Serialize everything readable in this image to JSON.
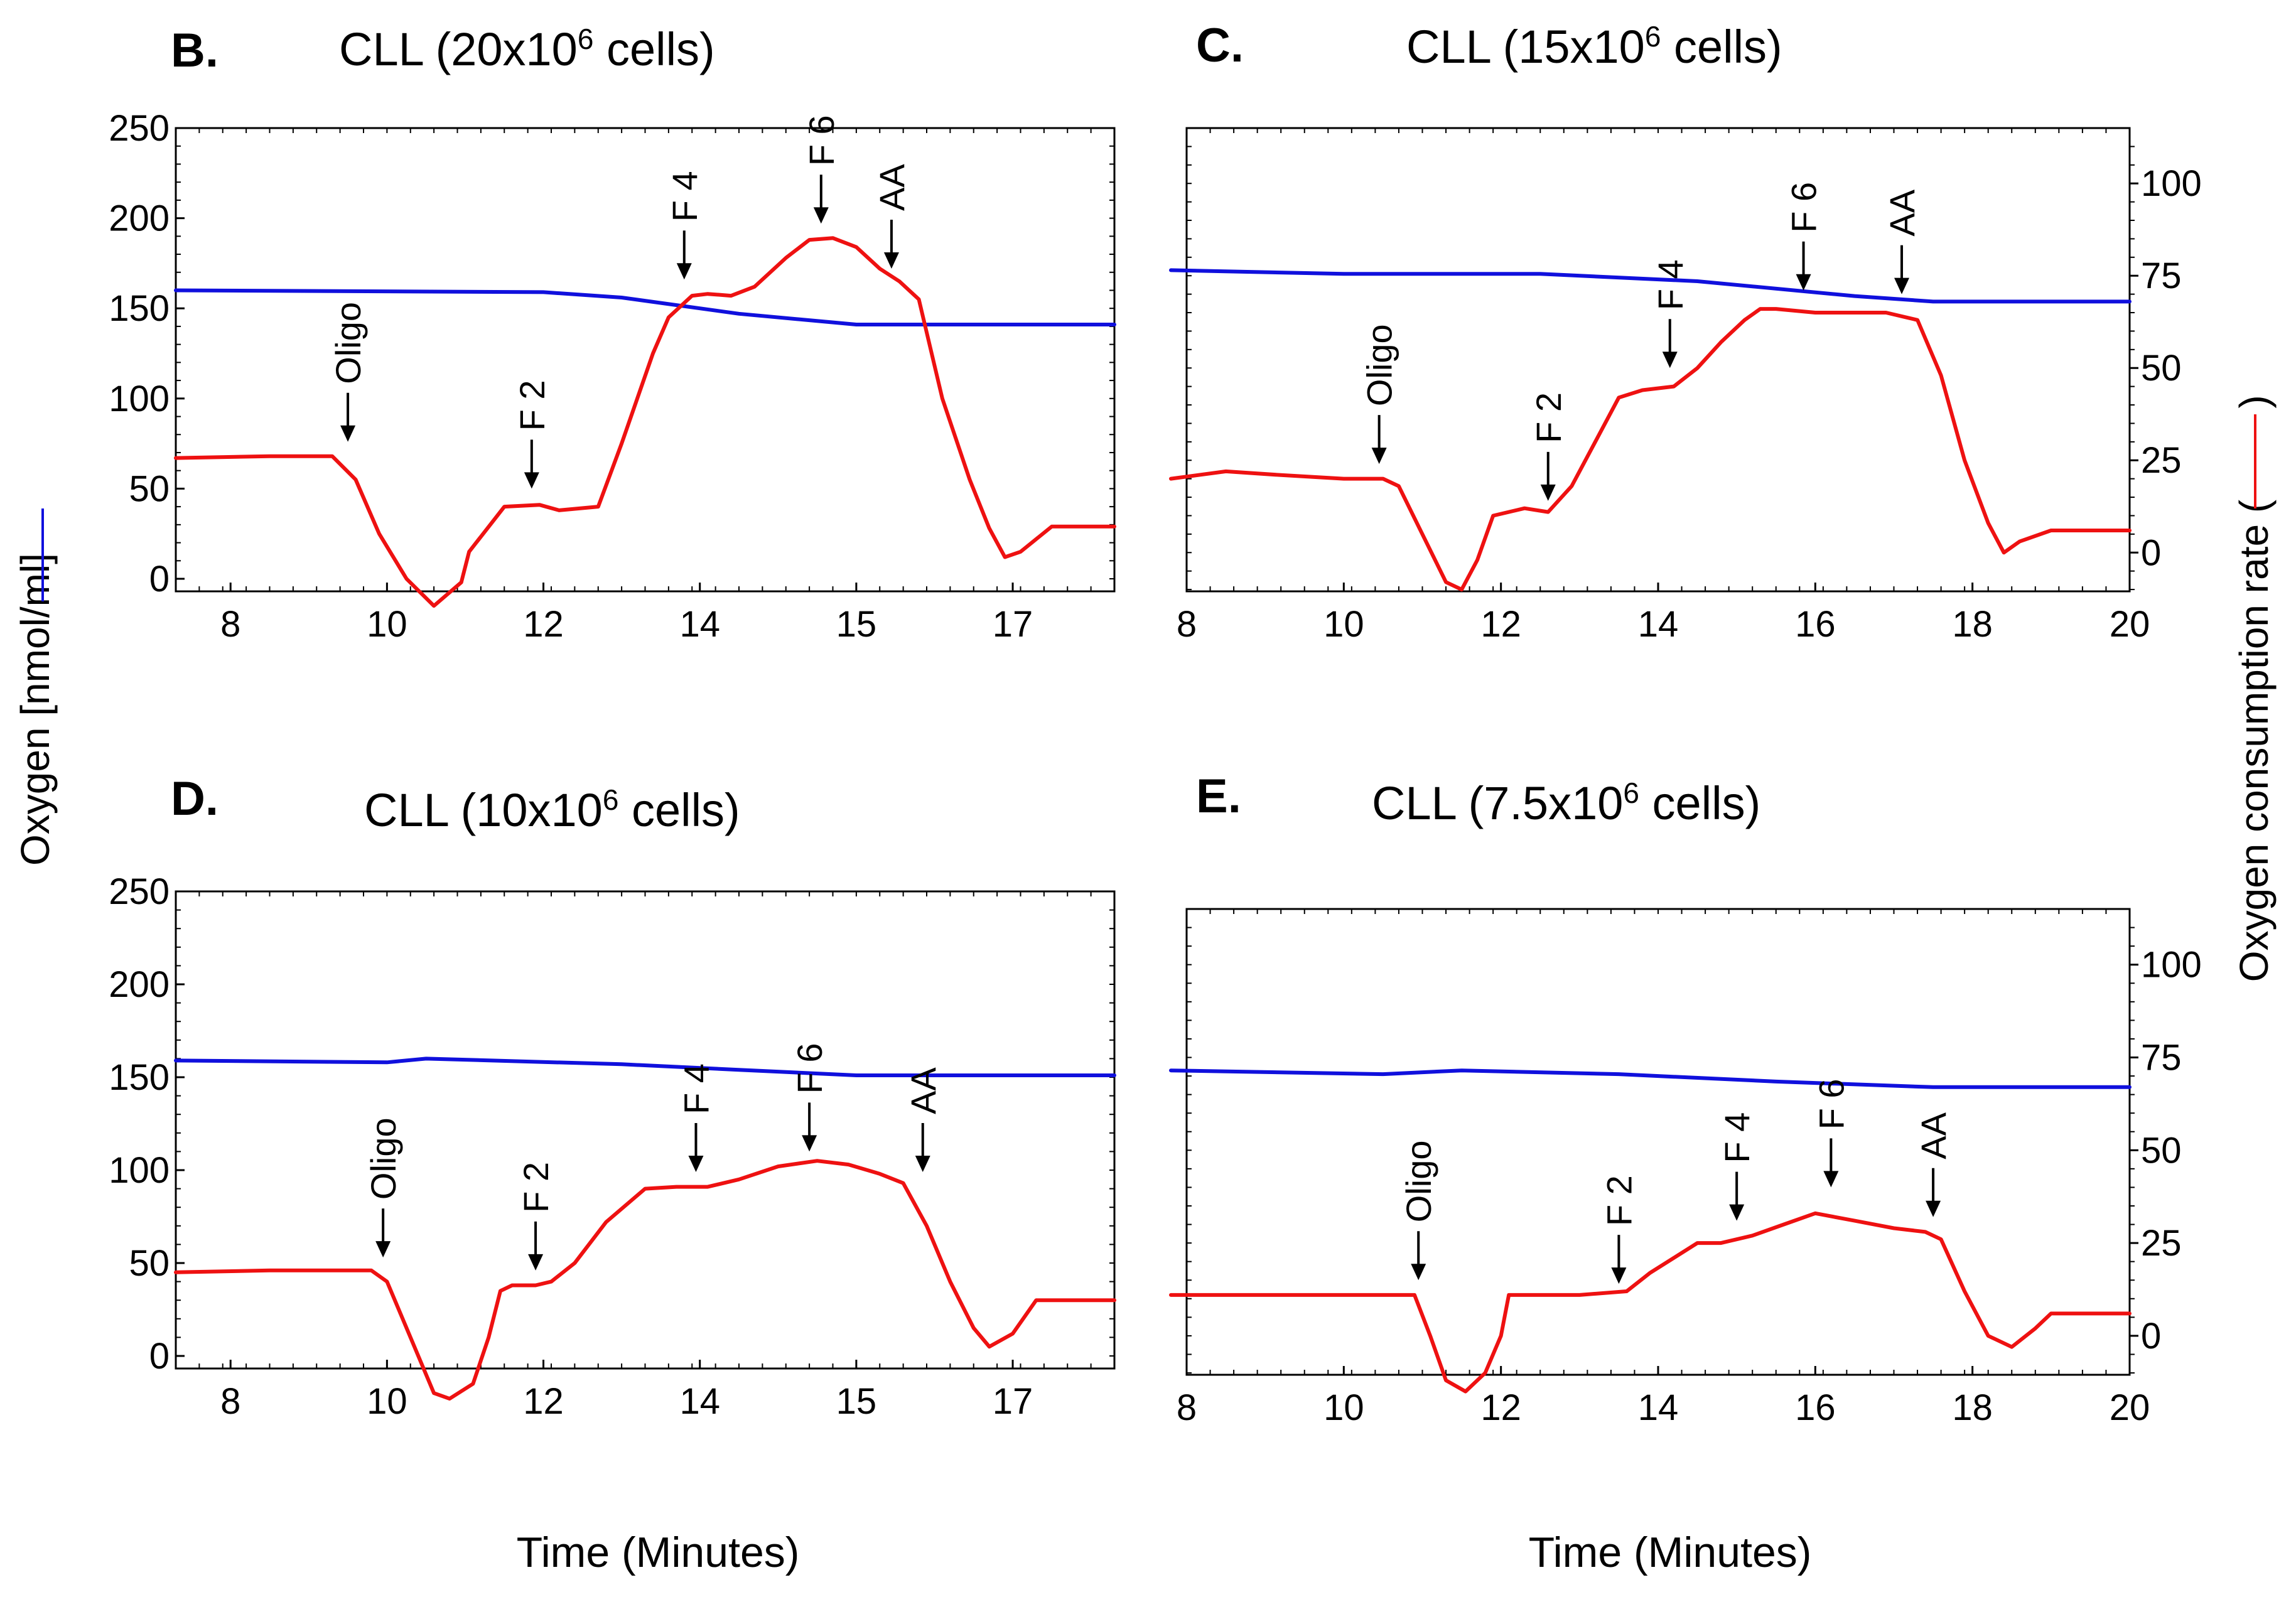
{
  "figure": {
    "shared_y_left_label": "Oxygen [nmol/ml]",
    "shared_y_right_label": "Oxygen consumption rate (",
    "shared_y_right_label_close": ")",
    "x_label": "Time (Minutes)",
    "colors": {
      "oxygen": "#1010dd",
      "ocr": "#ee1111"
    }
  },
  "chart_data": [
    {
      "id": "B",
      "letter": "B.",
      "title_pre": "CLL (20x10",
      "title_sup": "6",
      "title_post": " cells)",
      "type": "line",
      "xticks": [
        {
          "label": "8",
          "pos": 0.5
        },
        {
          "label": "10",
          "pos": 2.5
        },
        {
          "label": "12",
          "pos": 4.5
        },
        {
          "label": "14",
          "pos": 6.5
        },
        {
          "label": "15",
          "pos": 8.5
        },
        {
          "label": "17",
          "pos": 10.5
        }
      ],
      "xlim": [
        -0.2,
        11.8
      ],
      "left_axis": {
        "range": [
          0,
          250
        ],
        "ticks": [
          0,
          50,
          100,
          150,
          200,
          250
        ]
      },
      "right_axis": null,
      "series": [
        {
          "name": "Oxygen",
          "color": "#1010dd",
          "axis": "left",
          "x": [
            -0.2,
            4.5,
            5.5,
            7.0,
            8.5,
            11.8
          ],
          "y": [
            160,
            159,
            156,
            147,
            141,
            141
          ]
        },
        {
          "name": "Oxygen consumption rate",
          "color": "#ee1111",
          "axis": "left",
          "x": [
            -0.2,
            1.0,
            1.8,
            2.1,
            2.4,
            2.75,
            3.1,
            3.45,
            3.55,
            4.0,
            4.45,
            4.7,
            5.2,
            5.5,
            5.9,
            6.1,
            6.4,
            6.6,
            6.9,
            7.2,
            7.6,
            7.9,
            8.2,
            8.5,
            8.8,
            9.05,
            9.3,
            9.6,
            9.95,
            10.2,
            10.4,
            10.6,
            11.0,
            11.8
          ],
          "y": [
            67,
            68,
            68,
            55,
            25,
            0,
            -15,
            -2,
            15,
            40,
            41,
            38,
            40,
            75,
            125,
            145,
            157,
            158,
            157,
            162,
            178,
            188,
            189,
            184,
            172,
            165,
            155,
            100,
            55,
            28,
            12,
            15,
            29,
            29
          ]
        }
      ],
      "annotations": [
        {
          "text": "Oligo",
          "x": 2.0,
          "y": 76
        },
        {
          "text": "F 2",
          "x": 4.35,
          "y": 50
        },
        {
          "text": "F 4",
          "x": 6.3,
          "y": 166
        },
        {
          "text": "F 6",
          "x": 8.05,
          "y": 197
        },
        {
          "text": "AA",
          "x": 8.95,
          "y": 172
        }
      ]
    },
    {
      "id": "C",
      "letter": "C.",
      "title_pre": "CLL (15x10",
      "title_sup": "6",
      "title_post": " cells)",
      "type": "line",
      "xticks": [
        {
          "label": "8",
          "pos": 8
        },
        {
          "label": "10",
          "pos": 10
        },
        {
          "label": "12",
          "pos": 12
        },
        {
          "label": "14",
          "pos": 14
        },
        {
          "label": "16",
          "pos": 16
        },
        {
          "label": "18",
          "pos": 18
        },
        {
          "label": "20",
          "pos": 20
        }
      ],
      "xlim": [
        8,
        20
      ],
      "left_axis": null,
      "right_axis": {
        "range": [
          -10,
          115
        ],
        "ticks": [
          0,
          25,
          50,
          75,
          100
        ]
      },
      "series": [
        {
          "name": "Oxygen",
          "color": "#1010dd",
          "axis": "right",
          "x": [
            7.8,
            10.0,
            12.5,
            14.5,
            16.5,
            17.5,
            20.0
          ],
          "y": [
            76.5,
            75.5,
            75.5,
            73.5,
            69.5,
            68.0,
            68.0
          ]
        },
        {
          "name": "Oxygen consumption rate",
          "color": "#ee1111",
          "axis": "right",
          "x": [
            7.8,
            8.5,
            9.2,
            10.0,
            10.5,
            10.7,
            11.0,
            11.3,
            11.5,
            11.7,
            11.9,
            12.3,
            12.6,
            12.9,
            13.2,
            13.5,
            13.8,
            14.2,
            14.5,
            14.8,
            15.1,
            15.3,
            15.5,
            16.0,
            16.5,
            16.9,
            17.3,
            17.6,
            17.9,
            18.2,
            18.4,
            18.6,
            19.0,
            20.0
          ],
          "y": [
            20,
            22,
            21,
            20,
            20,
            18,
            5,
            -8,
            -10,
            -2,
            10,
            12,
            11,
            18,
            30,
            42,
            44,
            45,
            50,
            57,
            63,
            66,
            66,
            65,
            65,
            65,
            63,
            48,
            25,
            8,
            0,
            3,
            6,
            6
          ]
        }
      ],
      "annotations": [
        {
          "text": "Oligo",
          "x": 10.45,
          "y": 24
        },
        {
          "text": "F 2",
          "x": 12.6,
          "y": 14
        },
        {
          "text": "F 4",
          "x": 14.15,
          "y": 50
        },
        {
          "text": "F 6",
          "x": 15.85,
          "y": 71
        },
        {
          "text": "AA",
          "x": 17.1,
          "y": 70
        }
      ]
    },
    {
      "id": "D",
      "letter": "D.",
      "title_pre": "CLL (10x10",
      "title_sup": "6",
      "title_post": " cells)",
      "type": "line",
      "xticks": [
        {
          "label": "8",
          "pos": 0.5
        },
        {
          "label": "10",
          "pos": 2.5
        },
        {
          "label": "12",
          "pos": 4.5
        },
        {
          "label": "14",
          "pos": 6.5
        },
        {
          "label": "15",
          "pos": 8.5
        },
        {
          "label": "17",
          "pos": 10.5
        }
      ],
      "xlim": [
        -0.2,
        11.8
      ],
      "left_axis": {
        "range": [
          0,
          250
        ],
        "ticks": [
          0,
          50,
          100,
          150,
          200,
          250
        ]
      },
      "right_axis": null,
      "series": [
        {
          "name": "Oxygen",
          "color": "#1010dd",
          "axis": "left",
          "x": [
            -0.2,
            2.5,
            3.0,
            5.5,
            7.0,
            8.5,
            11.8
          ],
          "y": [
            159,
            158,
            160,
            157,
            154,
            151,
            151
          ]
        },
        {
          "name": "Oxygen consumption rate",
          "color": "#ee1111",
          "axis": "left",
          "x": [
            -0.2,
            1.0,
            2.3,
            2.5,
            2.8,
            3.1,
            3.3,
            3.6,
            3.8,
            3.95,
            4.1,
            4.4,
            4.6,
            4.9,
            5.3,
            5.8,
            6.2,
            6.6,
            7.0,
            7.5,
            8.0,
            8.4,
            8.8,
            9.1,
            9.4,
            9.7,
            10.0,
            10.2,
            10.5,
            10.8,
            11.8
          ],
          "y": [
            45,
            46,
            46,
            40,
            10,
            -20,
            -23,
            -15,
            10,
            35,
            38,
            38,
            40,
            50,
            72,
            90,
            91,
            91,
            95,
            102,
            105,
            103,
            98,
            93,
            70,
            40,
            15,
            5,
            12,
            30,
            30
          ]
        }
      ],
      "annotations": [
        {
          "text": "Oligo",
          "x": 2.45,
          "y": 53
        },
        {
          "text": "F 2",
          "x": 4.4,
          "y": 46
        },
        {
          "text": "F 4",
          "x": 6.45,
          "y": 99
        },
        {
          "text": "F 6",
          "x": 7.9,
          "y": 110
        },
        {
          "text": "AA",
          "x": 9.35,
          "y": 99
        }
      ]
    },
    {
      "id": "E",
      "letter": "E.",
      "title_pre": "CLL (7.5x10",
      "title_sup": "6",
      "title_post": " cells)",
      "type": "line",
      "xticks": [
        {
          "label": "8",
          "pos": 8
        },
        {
          "label": "10",
          "pos": 10
        },
        {
          "label": "12",
          "pos": 12
        },
        {
          "label": "14",
          "pos": 14
        },
        {
          "label": "16",
          "pos": 16
        },
        {
          "label": "18",
          "pos": 18
        },
        {
          "label": "20",
          "pos": 20
        }
      ],
      "xlim": [
        8,
        20
      ],
      "left_axis": null,
      "right_axis": {
        "range": [
          -10,
          115
        ],
        "ticks": [
          0,
          25,
          50,
          75,
          100
        ]
      },
      "series": [
        {
          "name": "Oxygen",
          "color": "#1010dd",
          "axis": "right",
          "x": [
            7.8,
            10.5,
            11.5,
            13.5,
            15.5,
            17.5,
            20.0
          ],
          "y": [
            71.5,
            70.5,
            71.5,
            70.5,
            68.5,
            67.0,
            67.0
          ]
        },
        {
          "name": "Oxygen consumption rate",
          "color": "#ee1111",
          "axis": "right",
          "x": [
            7.8,
            9.5,
            10.9,
            11.1,
            11.3,
            11.55,
            11.8,
            12.0,
            12.1,
            12.3,
            13.0,
            13.6,
            13.9,
            14.2,
            14.5,
            14.8,
            15.2,
            15.6,
            16.0,
            16.5,
            17.0,
            17.4,
            17.6,
            17.9,
            18.2,
            18.5,
            18.8,
            19.0,
            20.0
          ],
          "y": [
            11,
            11,
            11,
            0,
            -12,
            -15,
            -10,
            0,
            11,
            11,
            11,
            12,
            17,
            21,
            25,
            25,
            27,
            30,
            33,
            31,
            29,
            28,
            26,
            12,
            0,
            -3,
            2,
            6,
            6
          ]
        }
      ],
      "annotations": [
        {
          "text": "Oligo",
          "x": 10.95,
          "y": 15
        },
        {
          "text": "F 2",
          "x": 13.5,
          "y": 14
        },
        {
          "text": "F 4",
          "x": 15.0,
          "y": 31
        },
        {
          "text": "F 6",
          "x": 16.2,
          "y": 40
        },
        {
          "text": "AA",
          "x": 17.5,
          "y": 32
        }
      ]
    }
  ]
}
